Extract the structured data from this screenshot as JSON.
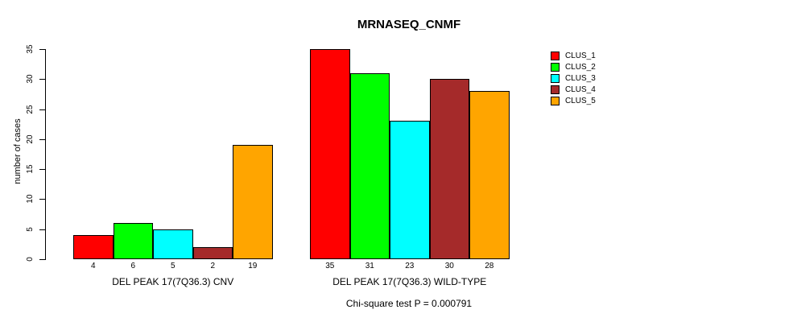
{
  "title": "MRNASEQ_CNMF",
  "footnote": "Chi-square test P = 0.000791",
  "y_axis": {
    "label": "number of cases",
    "tick_labels": [
      "0",
      "5",
      "10",
      "15",
      "20",
      "25",
      "30",
      "35"
    ]
  },
  "legend": {
    "position": "top-right",
    "boxed": false,
    "entries": [
      "CLUS_1",
      "CLUS_2",
      "CLUS_3",
      "CLUS_4",
      "CLUS_5"
    ]
  },
  "chart_data": {
    "type": "bar",
    "grouped": true,
    "title": "MRNASEQ_CNMF",
    "xlabel": "",
    "ylabel": "number of cases",
    "ylim": [
      0,
      35
    ],
    "yticks": [
      0,
      5,
      10,
      15,
      20,
      25,
      30,
      35
    ],
    "grid": false,
    "legend_position": "top-right",
    "bar_value_labels": true,
    "categories": [
      "DEL PEAK 17(7Q36.3) CNV",
      "DEL PEAK 17(7Q36.3) WILD-TYPE"
    ],
    "series": [
      {
        "name": "CLUS_1",
        "color": "#FF0000",
        "values": [
          4,
          35
        ]
      },
      {
        "name": "CLUS_2",
        "color": "#00FF00",
        "values": [
          6,
          31
        ]
      },
      {
        "name": "CLUS_3",
        "color": "#00FFFF",
        "values": [
          5,
          23
        ]
      },
      {
        "name": "CLUS_4",
        "color": "#A52A2A",
        "values": [
          2,
          30
        ]
      },
      {
        "name": "CLUS_5",
        "color": "#FFA500",
        "values": [
          19,
          28
        ]
      }
    ],
    "annotation": "Chi-square test P = 0.000791"
  }
}
